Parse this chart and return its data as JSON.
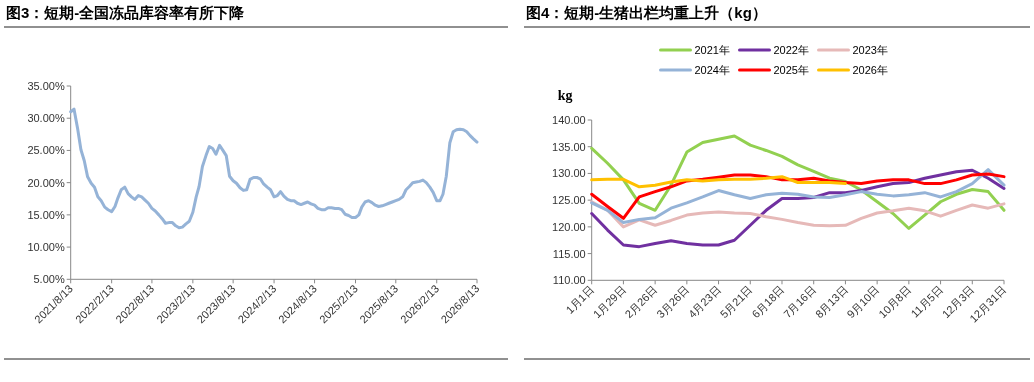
{
  "chart_data": [
    {
      "type": "line",
      "title": "图3：短期-全国冻品库容率有所下降",
      "color": "#95b3d7",
      "x": [
        "2021-08-13",
        "2021-08-28",
        "2021-09-13",
        "2021-09-28",
        "2021-10-13",
        "2021-10-28",
        "2021-11-13",
        "2021-11-28",
        "2021-12-13",
        "2021-12-28",
        "2022-01-13",
        "2022-01-28",
        "2022-02-13",
        "2022-02-28",
        "2022-03-13",
        "2022-03-28",
        "2022-04-13",
        "2022-04-28",
        "2022-05-13",
        "2022-05-28",
        "2022-06-13",
        "2022-06-28",
        "2022-07-13",
        "2022-07-28",
        "2022-08-13",
        "2022-08-28",
        "2022-09-13",
        "2022-09-28",
        "2022-10-13",
        "2022-10-28",
        "2022-11-13",
        "2022-11-28",
        "2022-12-13",
        "2022-12-28",
        "2023-01-13",
        "2023-01-28",
        "2023-02-13",
        "2023-02-28",
        "2023-03-13",
        "2023-03-28",
        "2023-04-13",
        "2023-04-28",
        "2023-05-13",
        "2023-05-28",
        "2023-06-13",
        "2023-06-28",
        "2023-07-13",
        "2023-07-28",
        "2023-08-13",
        "2023-08-28",
        "2023-09-13",
        "2023-09-28",
        "2023-10-13",
        "2023-10-28",
        "2023-11-13",
        "2023-11-28",
        "2023-12-13",
        "2023-12-28",
        "2024-01-13",
        "2024-01-28",
        "2024-02-13",
        "2024-02-28",
        "2024-03-13",
        "2024-03-28",
        "2024-04-13",
        "2024-04-28",
        "2024-05-13",
        "2024-05-28",
        "2024-06-13",
        "2024-06-28",
        "2024-07-13",
        "2024-07-28",
        "2024-08-13",
        "2024-08-28",
        "2024-09-13",
        "2024-09-28",
        "2024-10-13",
        "2024-10-28",
        "2024-11-13",
        "2024-11-28",
        "2024-12-13",
        "2024-12-28",
        "2025-01-13",
        "2025-01-28",
        "2025-02-13",
        "2025-02-28",
        "2025-03-13",
        "2025-03-28",
        "2025-04-13",
        "2025-04-28",
        "2025-05-13",
        "2025-05-28",
        "2025-06-13",
        "2025-06-28",
        "2025-07-13",
        "2025-07-28",
        "2025-08-13",
        "2025-08-28",
        "2025-09-13",
        "2025-09-28",
        "2025-10-13",
        "2025-10-28",
        "2025-11-13",
        "2025-11-28",
        "2025-12-13",
        "2025-12-28",
        "2026-01-13",
        "2026-01-28",
        "2026-02-13",
        "2026-02-28",
        "2026-03-13",
        "2026-03-28",
        "2026-04-13",
        "2026-04-28",
        "2026-05-13",
        "2026-05-28",
        "2026-06-13",
        "2026-06-28",
        "2026-07-13",
        "2026-07-28",
        "2026-08-13"
      ],
      "values": [
        31.0,
        31.4,
        28.4,
        25.1,
        23.4,
        20.9,
        19.9,
        19.3,
        17.8,
        17.2,
        16.2,
        15.8,
        15.5,
        16.3,
        17.6,
        18.9,
        19.3,
        18.3,
        17.8,
        17.4,
        18.0,
        17.8,
        17.3,
        16.8,
        16.0,
        15.6,
        15.0,
        14.4,
        13.7,
        13.8,
        13.8,
        13.3,
        13.0,
        13.1,
        13.6,
        14.0,
        15.4,
        17.8,
        19.4,
        22.5,
        24.2,
        25.6,
        25.3,
        24.4,
        25.8,
        25.0,
        24.2,
        21.0,
        20.3,
        19.9,
        19.2,
        18.8,
        18.9,
        20.5,
        20.8,
        20.8,
        20.6,
        19.8,
        19.3,
        18.9,
        17.8,
        18.0,
        18.6,
        17.9,
        17.4,
        17.2,
        17.2,
        16.8,
        16.6,
        16.8,
        17.0,
        16.7,
        16.5,
        16.0,
        15.8,
        15.8,
        16.1,
        16.1,
        16.0,
        16.0,
        15.8,
        15.1,
        14.9,
        14.6,
        14.6,
        15.0,
        16.2,
        17.0,
        17.2,
        16.9,
        16.5,
        16.3,
        16.4,
        16.6,
        16.8,
        17.0,
        17.2,
        17.4,
        17.8,
        18.9,
        19.4,
        20.0,
        20.1,
        20.2,
        20.4,
        20.0,
        19.3,
        18.5,
        17.2,
        17.2,
        18.2,
        21.0,
        26.2,
        27.9,
        28.2,
        28.3,
        28.2,
        27.9,
        27.3,
        26.8,
        26.3
      ],
      "xlim": [
        "2021-08-13",
        "2026-08-13"
      ],
      "xticks": [
        {
          "value": "2021-08-13",
          "label": "2021/8/13"
        },
        {
          "value": "2022-02-13",
          "label": "2022/2/13"
        },
        {
          "value": "2022-08-13",
          "label": "2022/8/13"
        },
        {
          "value": "2023-02-13",
          "label": "2023/2/13"
        },
        {
          "value": "2023-08-13",
          "label": "2023/8/13"
        },
        {
          "value": "2024-02-13",
          "label": "2024/2/13"
        },
        {
          "value": "2024-08-13",
          "label": "2024/8/13"
        },
        {
          "value": "2025-02-13",
          "label": "2025/2/13"
        },
        {
          "value": "2025-08-13",
          "label": "2025/8/13"
        },
        {
          "value": "2026-02-13",
          "label": "2026/2/13"
        },
        {
          "value": "2026-08-13",
          "label": "2026/8/13"
        }
      ],
      "ylim": [
        5,
        35
      ],
      "yticks": [
        {
          "value": 5,
          "label": "5.00%"
        },
        {
          "value": 10,
          "label": "10.00%"
        },
        {
          "value": 15,
          "label": "15.00%"
        },
        {
          "value": 20,
          "label": "20.00%"
        },
        {
          "value": 25,
          "label": "25.00%"
        },
        {
          "value": 30,
          "label": "30.00%"
        },
        {
          "value": 35,
          "label": "35.00%"
        }
      ]
    },
    {
      "type": "line",
      "title": "图4：短期-生猪出栏均重上升（kg）",
      "ylabel": "kg",
      "legend": "top",
      "x": [
        "--01-01",
        "--01-15",
        "--01-29",
        "--02-12",
        "--02-26",
        "--03-12",
        "--03-26",
        "--04-09",
        "--04-23",
        "--05-07",
        "--05-21",
        "--06-04",
        "--06-18",
        "--07-02",
        "--07-16",
        "--07-30",
        "--08-13",
        "--08-27",
        "--09-10",
        "--09-24",
        "--10-08",
        "--10-22",
        "--11-05",
        "--11-19",
        "--12-03",
        "--12-17",
        "--12-31"
      ],
      "series": [
        {
          "name": "2021年",
          "color": "#92d050",
          "values": [
            134.7,
            131.9,
            128.8,
            124.4,
            123.1,
            127.8,
            134.0,
            135.8,
            136.4,
            137.0,
            135.3,
            134.3,
            133.2,
            131.6,
            130.4,
            129.1,
            128.5,
            126.9,
            124.7,
            122.5,
            119.7,
            122.2,
            124.7,
            126.1,
            127.0,
            126.6,
            123.1
          ]
        },
        {
          "name": "2022年",
          "color": "#7030a0",
          "values": [
            122.5,
            119.4,
            116.6,
            116.3,
            116.9,
            117.4,
            116.9,
            116.6,
            116.6,
            117.5,
            120.3,
            123.1,
            125.3,
            125.3,
            125.5,
            126.4,
            126.4,
            126.8,
            127.5,
            128.1,
            128.3,
            129.1,
            129.7,
            130.3,
            130.6,
            129.1,
            127.2
          ]
        },
        {
          "name": "2023年",
          "color": "#e6b9b8",
          "values": [
            124.7,
            123.1,
            120.0,
            121.3,
            120.3,
            121.2,
            122.2,
            122.6,
            122.8,
            122.6,
            122.5,
            121.9,
            121.4,
            120.8,
            120.3,
            120.2,
            120.3,
            121.6,
            122.6,
            123.0,
            123.5,
            123.0,
            122.0,
            123.1,
            124.1,
            123.5,
            124.3
          ]
        },
        {
          "name": "2024年",
          "color": "#95b3d7",
          "values": [
            124.5,
            123.1,
            120.8,
            121.4,
            121.7,
            123.5,
            124.5,
            125.6,
            126.8,
            126.0,
            125.3,
            126.0,
            126.3,
            126.1,
            125.6,
            125.5,
            126.0,
            126.6,
            126.1,
            125.8,
            126.0,
            126.4,
            125.6,
            126.6,
            128.1,
            130.7,
            127.8
          ]
        },
        {
          "name": "2025年",
          "color": "#ff0000",
          "values": [
            126.1,
            123.8,
            121.6,
            125.6,
            126.6,
            127.5,
            128.6,
            128.9,
            129.3,
            129.7,
            129.7,
            129.4,
            128.8,
            128.8,
            129.1,
            128.6,
            128.3,
            128.1,
            128.6,
            128.8,
            128.8,
            128.1,
            128.1,
            128.8,
            129.7,
            129.9,
            129.4
          ]
        },
        {
          "name": "2026年",
          "color": "#ffc000",
          "values": [
            128.8,
            128.9,
            128.9,
            127.5,
            127.8,
            128.4,
            128.8,
            128.6,
            128.8,
            128.9,
            128.9,
            129.1,
            129.4,
            128.3,
            128.3,
            128.3,
            128.1,
            null,
            null,
            null,
            null,
            null,
            null,
            null,
            null,
            null,
            null
          ]
        }
      ],
      "xlim": [
        "--01-01",
        "--12-31"
      ],
      "xticks": [
        {
          "value": "--01-01",
          "label": "1月1日"
        },
        {
          "value": "--01-29",
          "label": "1月29日"
        },
        {
          "value": "--02-26",
          "label": "2月26日"
        },
        {
          "value": "--03-26",
          "label": "3月26日"
        },
        {
          "value": "--04-23",
          "label": "4月23日"
        },
        {
          "value": "--05-21",
          "label": "5月21日"
        },
        {
          "value": "--06-18",
          "label": "6月18日"
        },
        {
          "value": "--07-16",
          "label": "7月16日"
        },
        {
          "value": "--08-13",
          "label": "8月13日"
        },
        {
          "value": "--09-10",
          "label": "9月10日"
        },
        {
          "value": "--10-08",
          "label": "10月8日"
        },
        {
          "value": "--11-05",
          "label": "11月5日"
        },
        {
          "value": "--12-03",
          "label": "12月3日"
        },
        {
          "value": "--12-31",
          "label": "12月31日"
        }
      ],
      "ylim": [
        110,
        140
      ],
      "yticks": [
        {
          "value": 110,
          "label": "110.00"
        },
        {
          "value": 115,
          "label": "115.00"
        },
        {
          "value": 120,
          "label": "120.00"
        },
        {
          "value": 125,
          "label": "125.00"
        },
        {
          "value": 130,
          "label": "130.00"
        },
        {
          "value": 135,
          "label": "135.00"
        },
        {
          "value": 140,
          "label": "140.00"
        }
      ]
    }
  ]
}
